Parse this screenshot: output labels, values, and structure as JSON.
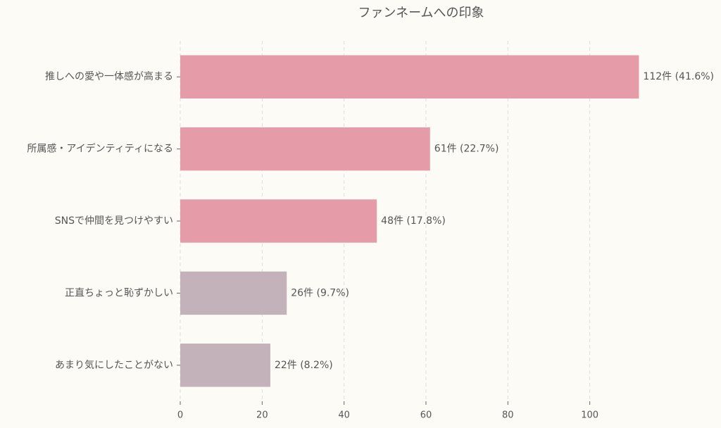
{
  "chart_data": {
    "type": "barh",
    "title": "ファンネームへの印象",
    "categories": [
      "推しへの愛や一体感が高まる",
      "所属感・アイデンティティになる",
      "SNSで仲間を見つけやすい",
      "正直ちょっと恥ずかしい",
      "あまり気にしたことがない"
    ],
    "values": [
      112,
      61,
      48,
      26,
      22
    ],
    "value_labels": [
      "112件 (41.6%)",
      "61件 (22.7%)",
      "48件 (17.8%)",
      "26件 (9.7%)",
      "22件 (8.2%)"
    ],
    "colors": [
      "#e59ca8",
      "#e59ca8",
      "#e59ca8",
      "#c4b2bb",
      "#c4b2bb"
    ],
    "xlim": [
      0,
      117.6
    ],
    "xticks": [
      0,
      20,
      40,
      60,
      80,
      100
    ],
    "grid": true
  }
}
